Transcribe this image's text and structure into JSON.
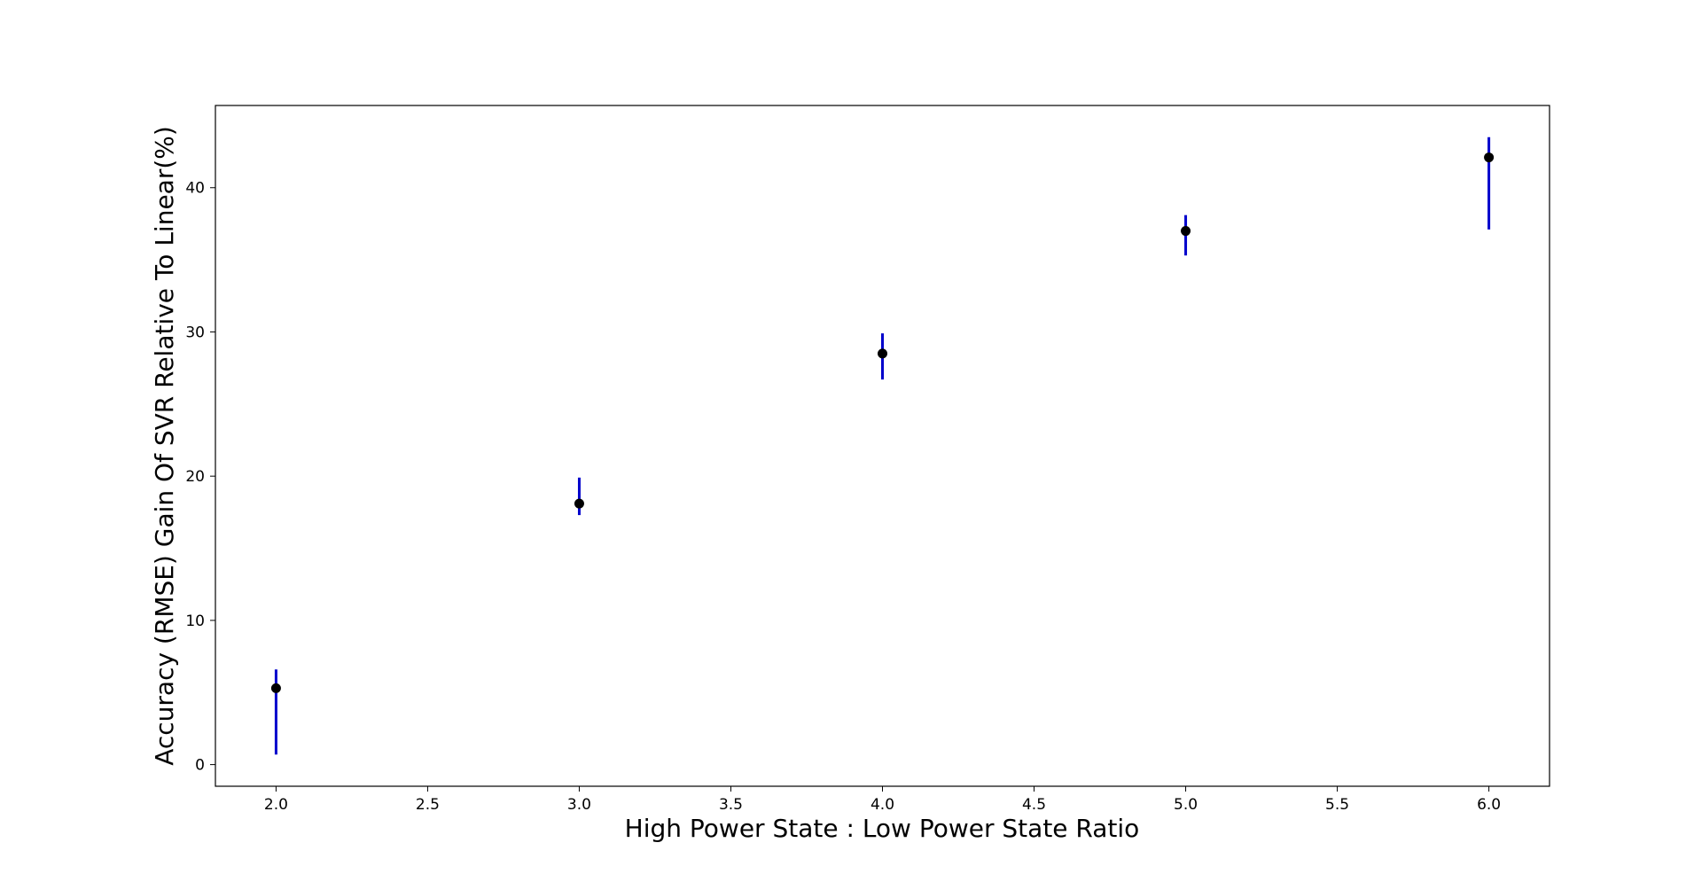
{
  "chart_data": {
    "type": "scatter",
    "title": "",
    "xlabel": "High Power State : Low Power State Ratio",
    "ylabel": "Accuracy (RMSE) Gain Of SVR Relative To Linear(%)",
    "xlim": [
      1.8,
      6.2
    ],
    "ylim": [
      -1.5,
      45.7
    ],
    "xticks": [
      "2.0",
      "2.5",
      "3.0",
      "3.5",
      "4.0",
      "4.5",
      "5.0",
      "5.5",
      "6.0"
    ],
    "yticks": [
      "0",
      "10",
      "20",
      "30",
      "40"
    ],
    "grid": false,
    "legend": "none",
    "marker_color": "#000000",
    "errorbar_color": "#0000cc",
    "series": [
      {
        "x": [
          2.0,
          3.0,
          4.0,
          5.0,
          6.0
        ],
        "y": [
          5.3,
          18.1,
          28.5,
          37.0,
          42.1
        ],
        "yerr_low": [
          0.7,
          17.3,
          26.7,
          35.3,
          37.1
        ],
        "yerr_high": [
          6.6,
          19.9,
          29.9,
          38.1,
          43.5
        ]
      }
    ]
  }
}
